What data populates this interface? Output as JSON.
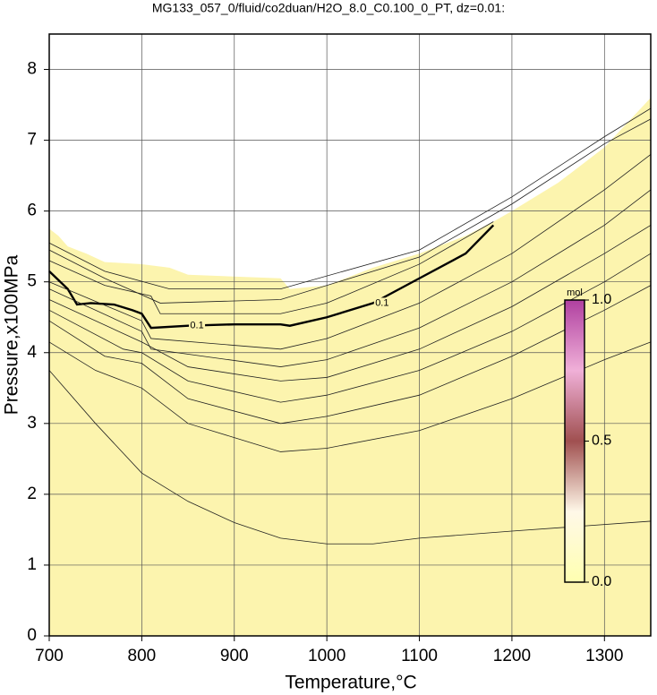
{
  "chart_data": {
    "type": "contour",
    "title": "MG133_057_0/fluid/co2duan/H2O_8.0_C0.100_0_PT, dz=0.01:",
    "x_label": "Temperature,°C",
    "y_label": "Pressure,x100MPa",
    "xlim": [
      700,
      1350
    ],
    "ylim": [
      0,
      8.5
    ],
    "xticks": [
      700,
      800,
      900,
      1000,
      1100,
      1200,
      1300
    ],
    "yticks": [
      0,
      1,
      2,
      3,
      4,
      5,
      6,
      7,
      8
    ],
    "grid": true,
    "fill_color": "#fcf4ae",
    "fill_boundary": {
      "x": [
        700,
        710,
        720,
        740,
        760,
        800,
        830,
        850,
        950,
        960,
        1000,
        1050,
        1100,
        1150,
        1180,
        1200,
        1250,
        1300,
        1350
      ],
      "values": [
        5.75,
        5.65,
        5.5,
        5.4,
        5.28,
        5.25,
        5.2,
        5.1,
        5.05,
        4.9,
        4.95,
        5.2,
        5.4,
        5.65,
        5.85,
        6.0,
        6.4,
        6.9,
        7.6
      ]
    },
    "series": [
      {
        "name": "0.1",
        "color": "#000000",
        "x": [
          700,
          720,
          730,
          745,
          770,
          790,
          800,
          810,
          850,
          900,
          950,
          960,
          1000,
          1050,
          1100,
          1150,
          1180
        ],
        "values": [
          5.15,
          4.9,
          4.68,
          4.7,
          4.68,
          4.6,
          4.55,
          4.35,
          4.38,
          4.4,
          4.4,
          4.38,
          4.5,
          4.7,
          5.05,
          5.4,
          5.8
        ]
      },
      {
        "color": "#222222",
        "x": [
          700,
          750,
          800,
          850,
          900,
          950,
          1000,
          1050,
          1100,
          1200,
          1350
        ],
        "values": [
          3.75,
          3.0,
          2.3,
          1.9,
          1.6,
          1.38,
          1.3,
          1.3,
          1.38,
          1.48,
          1.62
        ]
      },
      {
        "color": "#222222",
        "x": [
          700,
          750,
          800,
          850,
          900,
          950,
          1000,
          1100,
          1200,
          1300,
          1350
        ],
        "values": [
          4.15,
          3.75,
          3.5,
          3.0,
          2.8,
          2.6,
          2.65,
          2.9,
          3.35,
          3.9,
          4.15
        ]
      },
      {
        "color": "#222222",
        "x": [
          700,
          760,
          800,
          850,
          950,
          1000,
          1100,
          1200,
          1300,
          1350
        ],
        "values": [
          4.45,
          3.95,
          3.85,
          3.35,
          3.0,
          3.1,
          3.4,
          3.95,
          4.6,
          4.95
        ]
      },
      {
        "color": "#222222",
        "x": [
          700,
          780,
          800,
          850,
          950,
          1000,
          1100,
          1200,
          1300,
          1350
        ],
        "values": [
          4.6,
          4.05,
          4.0,
          3.6,
          3.3,
          3.4,
          3.75,
          4.3,
          5.0,
          5.4
        ]
      },
      {
        "color": "#222222",
        "x": [
          700,
          800,
          850,
          950,
          1000,
          1100,
          1200,
          1300,
          1350
        ],
        "values": [
          4.75,
          4.15,
          3.8,
          3.6,
          3.65,
          4.05,
          4.65,
          5.4,
          5.8
        ]
      },
      {
        "color": "#222222",
        "x": [
          700,
          800,
          810,
          950,
          1000,
          1100,
          1200,
          1300,
          1350
        ],
        "values": [
          4.9,
          4.3,
          4.05,
          3.8,
          3.9,
          4.35,
          5.0,
          5.8,
          6.3
        ]
      },
      {
        "color": "#222222",
        "x": [
          700,
          800,
          810,
          950,
          1000,
          1100,
          1200,
          1300,
          1350
        ],
        "values": [
          5.0,
          4.45,
          4.2,
          4.05,
          4.2,
          4.7,
          5.4,
          6.3,
          6.8
        ]
      },
      {
        "color": "#222222",
        "x": [
          700,
          760,
          810,
          820,
          950,
          1000,
          1100,
          1180
        ],
        "values": [
          5.3,
          4.95,
          4.8,
          4.55,
          4.55,
          4.7,
          5.25,
          5.85
        ]
      },
      {
        "color": "#222222",
        "x": [
          700,
          760,
          820,
          950,
          1100,
          1200,
          1300,
          1350
        ],
        "values": [
          5.45,
          5.05,
          4.7,
          4.75,
          5.35,
          6.1,
          6.95,
          7.3
        ]
      },
      {
        "color": "#222222",
        "x": [
          700,
          760,
          830,
          950,
          1100,
          1200,
          1300,
          1350
        ],
        "values": [
          5.55,
          5.15,
          4.9,
          4.9,
          5.45,
          6.2,
          7.05,
          7.45
        ]
      }
    ],
    "colorbar": {
      "label": "mol",
      "lim": [
        0,
        1
      ],
      "ticks": [
        {
          "value": 0,
          "label": "0.0"
        },
        0.5,
        {
          "value": 1,
          "label": "1.0"
        }
      ]
    }
  }
}
